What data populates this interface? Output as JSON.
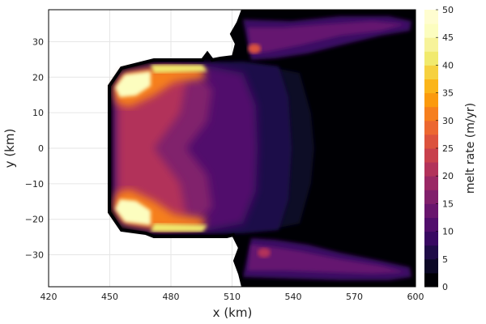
{
  "chart_data": {
    "type": "heatmap",
    "title": "",
    "xlabel": "x (km)",
    "ylabel": "y (km)",
    "xlim": [
      420,
      600
    ],
    "ylim": [
      -39,
      39
    ],
    "x_ticks": [
      "420",
      "450",
      "480",
      "510",
      "540",
      "570",
      "600"
    ],
    "y_ticks": [
      "30",
      "20",
      "10",
      "0",
      "−10",
      "−20",
      "−30"
    ],
    "grid": true,
    "colorbar": {
      "label": "melt rate (m/yr)",
      "range": [
        0,
        50
      ],
      "ticks": [
        "0",
        "5",
        "10",
        "15",
        "20",
        "25",
        "30",
        "35",
        "40",
        "45",
        "50"
      ],
      "levels": [
        0,
        2.5,
        5,
        7.5,
        10,
        12.5,
        15,
        17.5,
        20,
        22.5,
        25,
        27.5,
        30,
        32.5,
        35,
        37.5,
        40,
        42.5,
        45,
        47.5,
        50
      ],
      "colors": [
        "#000004",
        "#0c0826",
        "#1f0c48",
        "#380962",
        "#510e6c",
        "#69166e",
        "#81206c",
        "#9a2865",
        "#b2325a",
        "#c8404c",
        "#dc523d",
        "#ec6730",
        "#f67f1e",
        "#fb9a0e",
        "#fbb51a",
        "#f6d140",
        "#f1ea6e",
        "#f7f39a",
        "#fcfdbf",
        "#fffdd0"
      ]
    },
    "colormap": "inferno",
    "grounded_region_color": "#ffffff"
  }
}
